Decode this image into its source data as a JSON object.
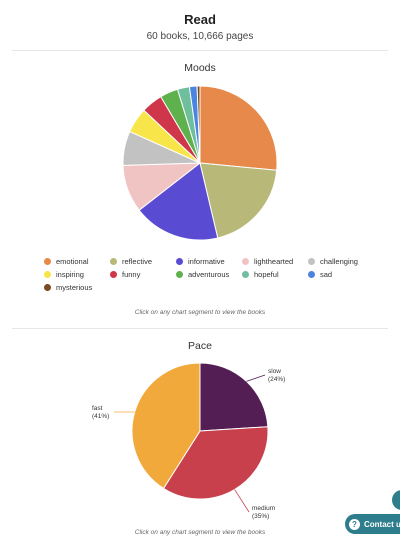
{
  "header": {
    "title": "Read",
    "subtitle": "60 books, 10,666 pages"
  },
  "contact": {
    "label": "Contact u",
    "icon": "help-icon"
  },
  "chart_data": [
    {
      "type": "pie",
      "title": "Moods",
      "hint": "Click on any chart segment to view the books",
      "legend_position": "bottom",
      "categories": [
        "emotional",
        "reflective",
        "informative",
        "lighthearted",
        "challenging",
        "inspiring",
        "funny",
        "adventurous",
        "hopeful",
        "sad",
        "mysterious"
      ],
      "values": [
        26.5,
        19.8,
        18.2,
        10.0,
        7.2,
        5.3,
        4.5,
        3.8,
        2.5,
        1.6,
        0.6
      ],
      "colors": [
        "#E6894A",
        "#B8B878",
        "#5A4BD3",
        "#F1C4C4",
        "#C2C2C2",
        "#F8E54A",
        "#D0364A",
        "#5FB14D",
        "#6FBF9E",
        "#4A86DF",
        "#7A4A22"
      ]
    },
    {
      "type": "pie",
      "title": "Pace",
      "hint": "Click on any chart segment to view the books",
      "categories": [
        "slow",
        "medium",
        "fast"
      ],
      "values": [
        24,
        35,
        41
      ],
      "value_labels": [
        "(24%)",
        "(35%)",
        "(41%)"
      ],
      "colors": [
        "#521E54",
        "#C8404C",
        "#F2A93B"
      ]
    }
  ]
}
